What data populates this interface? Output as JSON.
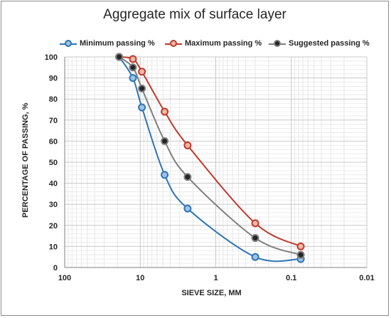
{
  "chart_data": {
    "type": "line",
    "title": "Aggregate mix of surface layer",
    "xlabel": "SIEVE SIZE, MM",
    "ylabel": "PERCENTAGE OF PASSING, %",
    "x_scale": "log",
    "x_reversed": true,
    "xlim": [
      100,
      0.01
    ],
    "ylim": [
      0,
      100
    ],
    "x_ticks": [
      100,
      10,
      1,
      0.1,
      0.01
    ],
    "x_tick_labels": [
      "100",
      "10",
      "1",
      "0.1",
      "0.01"
    ],
    "y_ticks": [
      0,
      10,
      20,
      30,
      40,
      50,
      60,
      70,
      80,
      90,
      100
    ],
    "grid": true,
    "legend_position": "top",
    "series": [
      {
        "name": "Minimum passing %",
        "color": "#2e75b6",
        "fill": "#9dc3e6",
        "x": [
          19,
          12.5,
          9.5,
          4.75,
          2.36,
          0.3,
          0.075
        ],
        "y": [
          100,
          90,
          76,
          44,
          28,
          5,
          4
        ]
      },
      {
        "name": "Maximum passing %",
        "color": "#c0392b",
        "fill": "#f4b7a8",
        "x": [
          19,
          12.5,
          9.5,
          4.75,
          2.36,
          0.3,
          0.075
        ],
        "y": [
          100,
          99,
          93,
          74,
          58,
          21,
          10
        ]
      },
      {
        "name": "Suggested passing %",
        "color": "#7f7f7f",
        "fill": "#262626",
        "x": [
          19,
          12.5,
          9.5,
          4.75,
          2.36,
          0.3,
          0.075
        ],
        "y": [
          100,
          95,
          85,
          60,
          43,
          14,
          6
        ]
      }
    ]
  }
}
